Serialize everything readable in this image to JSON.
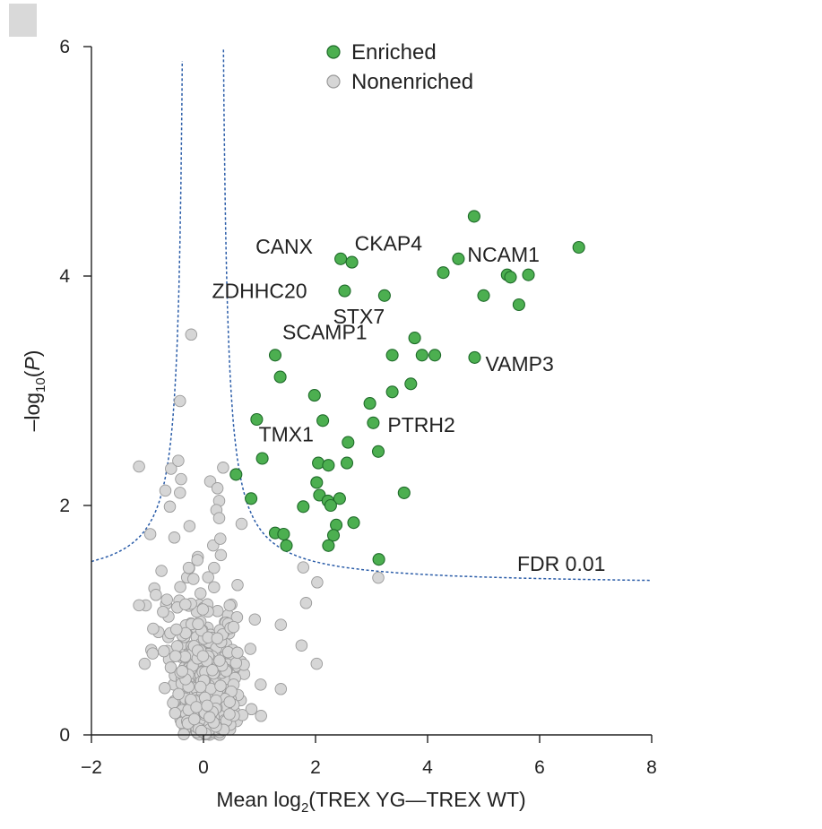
{
  "chart_data": {
    "type": "scatter",
    "xlabel_parts": [
      "Mean log",
      "2",
      "(TREX YG—TREX WT)"
    ],
    "ylabel_parts": [
      "–log",
      "10",
      "(",
      "P",
      ")"
    ],
    "xlim": [
      -2,
      8
    ],
    "ylim": [
      0,
      6
    ],
    "xticks": [
      -2,
      0,
      2,
      4,
      6,
      8
    ],
    "yticks": [
      0,
      2,
      4,
      6
    ],
    "xtick_labels": [
      "−2",
      "0",
      "2",
      "4",
      "6",
      "8"
    ],
    "ytick_labels": [
      "0",
      "2",
      "4",
      "6"
    ],
    "legend": {
      "position": "top-center",
      "entries": [
        {
          "label": "Enriched",
          "color": "#4caf50"
        },
        {
          "label": "Nonenriched",
          "color": "#d6d6d6"
        }
      ]
    },
    "fdr_label": "FDR 0.01",
    "fdr_curve": {
      "left_asymptote": -0.3,
      "right_asymptote": 0.28,
      "left_floor": 1.3,
      "right_floor": 1.3
    },
    "colors": {
      "enriched": "#4caf50",
      "enriched_edge": "#1f6b2a",
      "nonenriched": "#d6d6d6",
      "nonenriched_edge": "#9a9a9a",
      "fdr": "#2a5ca8"
    },
    "series": [
      {
        "name": "Enriched",
        "points": [
          [
            4.83,
            4.52
          ],
          [
            6.7,
            4.25
          ],
          [
            2.45,
            4.15
          ],
          [
            2.65,
            4.12
          ],
          [
            4.55,
            4.15
          ],
          [
            4.28,
            4.03
          ],
          [
            5.42,
            4.01
          ],
          [
            5.48,
            3.99
          ],
          [
            5.8,
            4.01
          ],
          [
            2.52,
            3.87
          ],
          [
            3.23,
            3.83
          ],
          [
            5.0,
            3.83
          ],
          [
            5.63,
            3.75
          ],
          [
            3.77,
            3.46
          ],
          [
            1.28,
            3.31
          ],
          [
            3.37,
            3.31
          ],
          [
            3.9,
            3.31
          ],
          [
            4.13,
            3.31
          ],
          [
            4.84,
            3.29
          ],
          [
            1.37,
            3.12
          ],
          [
            3.7,
            3.06
          ],
          [
            1.98,
            2.96
          ],
          [
            3.37,
            2.99
          ],
          [
            2.97,
            2.89
          ],
          [
            0.95,
            2.75
          ],
          [
            2.13,
            2.74
          ],
          [
            3.03,
            2.72
          ],
          [
            2.58,
            2.55
          ],
          [
            3.12,
            2.47
          ],
          [
            1.05,
            2.41
          ],
          [
            2.05,
            2.37
          ],
          [
            2.23,
            2.35
          ],
          [
            2.56,
            2.37
          ],
          [
            0.58,
            2.27
          ],
          [
            2.02,
            2.2
          ],
          [
            2.07,
            2.09
          ],
          [
            0.85,
            2.06
          ],
          [
            2.22,
            2.04
          ],
          [
            2.43,
            2.06
          ],
          [
            3.58,
            2.11
          ],
          [
            1.78,
            1.99
          ],
          [
            2.27,
            2.0
          ],
          [
            2.37,
            1.83
          ],
          [
            2.68,
            1.85
          ],
          [
            1.28,
            1.76
          ],
          [
            1.43,
            1.75
          ],
          [
            2.32,
            1.74
          ],
          [
            1.48,
            1.65
          ],
          [
            2.23,
            1.65
          ],
          [
            3.13,
            1.53
          ]
        ]
      },
      {
        "name": "Nonenriched",
        "points": [
          [
            -0.22,
            3.49
          ],
          [
            -0.42,
            2.91
          ],
          [
            -1.15,
            2.34
          ],
          [
            -0.58,
            2.32
          ],
          [
            -0.45,
            2.39
          ],
          [
            0.35,
            2.33
          ],
          [
            -0.4,
            2.23
          ],
          [
            0.12,
            2.21
          ],
          [
            -0.68,
            2.13
          ],
          [
            -0.42,
            2.11
          ],
          [
            0.25,
            2.15
          ],
          [
            0.28,
            2.04
          ],
          [
            -0.6,
            1.99
          ],
          [
            0.23,
            1.96
          ],
          [
            0.28,
            1.89
          ],
          [
            0.68,
            1.84
          ],
          [
            -0.95,
            1.75
          ],
          [
            -0.25,
            1.82
          ],
          [
            -0.52,
            1.72
          ],
          [
            0.3,
            1.71
          ],
          [
            1.78,
            1.46
          ],
          [
            3.12,
            1.37
          ],
          [
            2.03,
            1.33
          ],
          [
            -1.15,
            1.13
          ],
          [
            1.83,
            1.15
          ],
          [
            2.02,
            0.62
          ],
          [
            1.38,
            0.4
          ],
          [
            -1.05,
            0.62
          ],
          [
            1.75,
            0.78
          ],
          [
            1.38,
            0.96
          ],
          [
            -0.85,
            1.22
          ],
          [
            -0.75,
            1.43
          ]
        ]
      }
    ],
    "labels": [
      {
        "text": "CANX",
        "x": 2.45,
        "y": 4.15
      },
      {
        "text": "CKAP4",
        "x": 2.65,
        "y": 4.12
      },
      {
        "text": "NCAM1",
        "x": 4.55,
        "y": 4.15
      },
      {
        "text": "ZDHHC20",
        "x": 2.52,
        "y": 3.87
      },
      {
        "text": "STX7",
        "x": 3.77,
        "y": 3.46
      },
      {
        "text": "SCAMP1",
        "x": 1.28,
        "y": 3.31
      },
      {
        "text": "VAMP3",
        "x": 4.84,
        "y": 3.29
      },
      {
        "text": "TMX1",
        "x": 1.05,
        "y": 2.41
      },
      {
        "text": "PTRH2",
        "x": 3.03,
        "y": 2.72
      }
    ]
  }
}
